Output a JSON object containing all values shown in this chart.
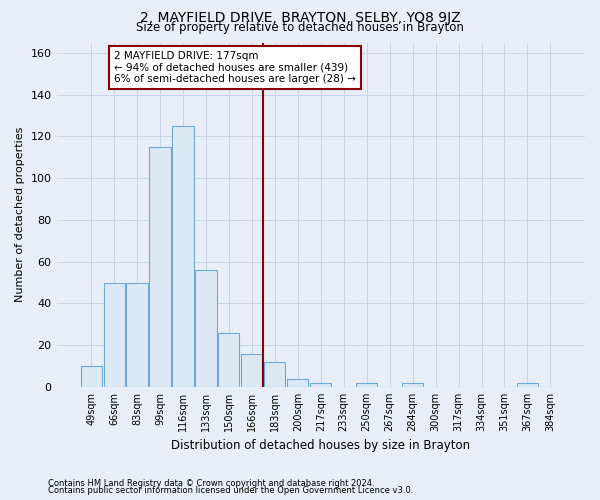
{
  "title": "2, MAYFIELD DRIVE, BRAYTON, SELBY, YO8 9JZ",
  "subtitle": "Size of property relative to detached houses in Brayton",
  "xlabel": "Distribution of detached houses by size in Brayton",
  "ylabel": "Number of detached properties",
  "categories": [
    "49sqm",
    "66sqm",
    "83sqm",
    "99sqm",
    "116sqm",
    "133sqm",
    "150sqm",
    "166sqm",
    "183sqm",
    "200sqm",
    "217sqm",
    "233sqm",
    "250sqm",
    "267sqm",
    "284sqm",
    "300sqm",
    "317sqm",
    "334sqm",
    "351sqm",
    "367sqm",
    "384sqm"
  ],
  "bar_heights": [
    10,
    50,
    50,
    115,
    125,
    56,
    26,
    16,
    12,
    4,
    2,
    0,
    2,
    0,
    2,
    0,
    0,
    0,
    0,
    2,
    0
  ],
  "bar_color": "#dce9f5",
  "bar_edge_color": "#6aaad4",
  "bg_color": "#e8eef7",
  "plot_bg_color": "#e8eef7",
  "grid_color": "#c8d4e8",
  "vline_color": "#8b0000",
  "annotation_text": "2 MAYFIELD DRIVE: 177sqm\n← 94% of detached houses are smaller (439)\n6% of semi-detached houses are larger (28) →",
  "annotation_box_color": "#8b0000",
  "footnote1": "Contains HM Land Registry data © Crown copyright and database right 2024.",
  "footnote2": "Contains public sector information licensed under the Open Government Licence v3.0.",
  "ylim": [
    0,
    165
  ],
  "yticks": [
    0,
    20,
    40,
    60,
    80,
    100,
    120,
    140,
    160
  ]
}
